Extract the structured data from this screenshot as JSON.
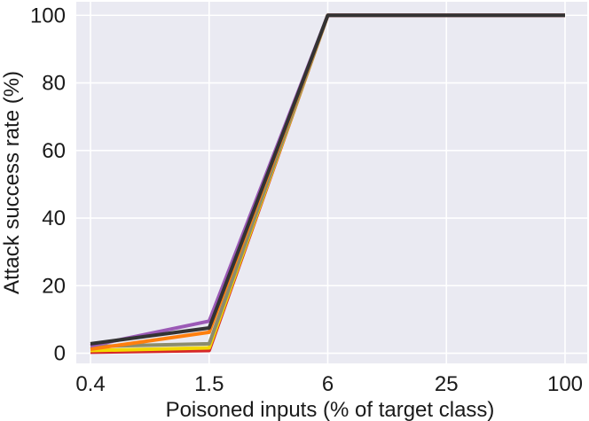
{
  "chart_data": {
    "type": "line",
    "title": "",
    "xlabel": "Poisoned inputs (% of target class)",
    "ylabel": "Attack success rate (%)",
    "x_scale": "categorical",
    "categories": [
      "0.4",
      "1.5",
      "6",
      "25",
      "100"
    ],
    "ylim": [
      -3,
      104
    ],
    "yticks": [
      0,
      20,
      40,
      60,
      80,
      100
    ],
    "grid": true,
    "legend": "none",
    "background_color": "#eaeaf2",
    "grid_color": "#ffffff",
    "series": [
      {
        "color": "#d62728",
        "values": [
          0.3,
          0.8,
          100,
          100,
          100
        ]
      },
      {
        "color": "#f2d800",
        "values": [
          0.8,
          1.6,
          100,
          100,
          100
        ]
      },
      {
        "color": "#8c8c6c",
        "values": [
          2.0,
          2.8,
          100,
          100,
          100
        ]
      },
      {
        "color": "#ff7f0e",
        "values": [
          1.2,
          6.2,
          100,
          100,
          100
        ]
      },
      {
        "color": "#9b59b6",
        "values": [
          2.2,
          9.5,
          100,
          100,
          100
        ]
      },
      {
        "color": "#333333",
        "values": [
          2.8,
          7.5,
          100,
          100,
          100
        ]
      }
    ]
  }
}
